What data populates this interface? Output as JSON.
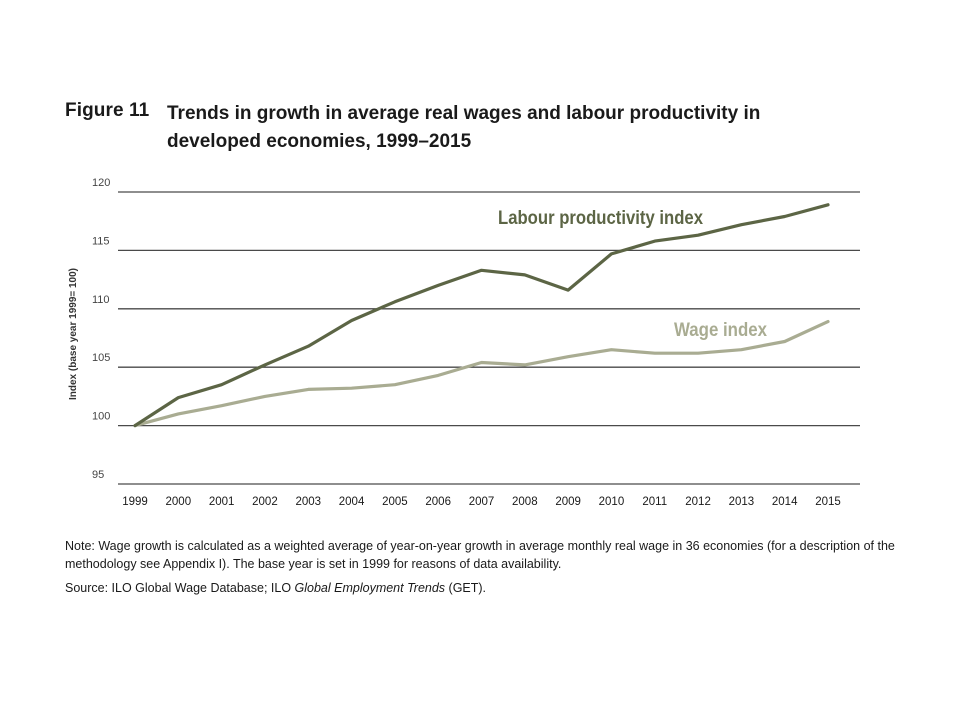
{
  "figure": {
    "label": "Figure 11",
    "title": "Trends in growth in average real wages and labour productivity in developed economies, 1999–2015"
  },
  "chart_data": {
    "type": "line",
    "title": "Trends in growth in average real wages and labour productivity in developed economies, 1999–2015",
    "xlabel": "",
    "ylabel": "Index (base year 1999= 100)",
    "ylim": [
      95,
      120
    ],
    "yticks": [
      95,
      100,
      105,
      110,
      115,
      120
    ],
    "grid": true,
    "categories": [
      "1999",
      "2000",
      "2001",
      "2002",
      "2003",
      "2004",
      "2005",
      "2006",
      "2007",
      "2008",
      "2009",
      "2010",
      "2011",
      "2012",
      "2013",
      "2014",
      "2015"
    ],
    "series": [
      {
        "name": "Labour productivity index",
        "color": "#5c6545",
        "values": [
          100,
          102.4,
          103.5,
          105.2,
          106.8,
          109.0,
          110.6,
          112.0,
          113.3,
          112.9,
          111.6,
          114.7,
          115.8,
          116.3,
          117.2,
          117.9,
          118.9
        ]
      },
      {
        "name": "Wage index",
        "color": "#a9ac92",
        "values": [
          100,
          101.0,
          101.7,
          102.5,
          103.1,
          103.2,
          103.5,
          104.3,
          105.4,
          105.2,
          105.9,
          106.5,
          106.2,
          106.2,
          106.5,
          107.2,
          108.9
        ]
      }
    ],
    "annotations": [
      "Labour productivity index",
      "Wage index"
    ]
  },
  "note": {
    "text": "Note: Wage growth is calculated as a weighted average of year-on-year growth in average monthly real wage in 36 economies (for a description of the methodology see Appendix I). The base year is set in 1999 for reasons of data availability."
  },
  "source": {
    "prefix": "Source: ILO Global Wage Database; ILO ",
    "italic": "Global Employment Trends",
    "suffix": " (GET)."
  }
}
